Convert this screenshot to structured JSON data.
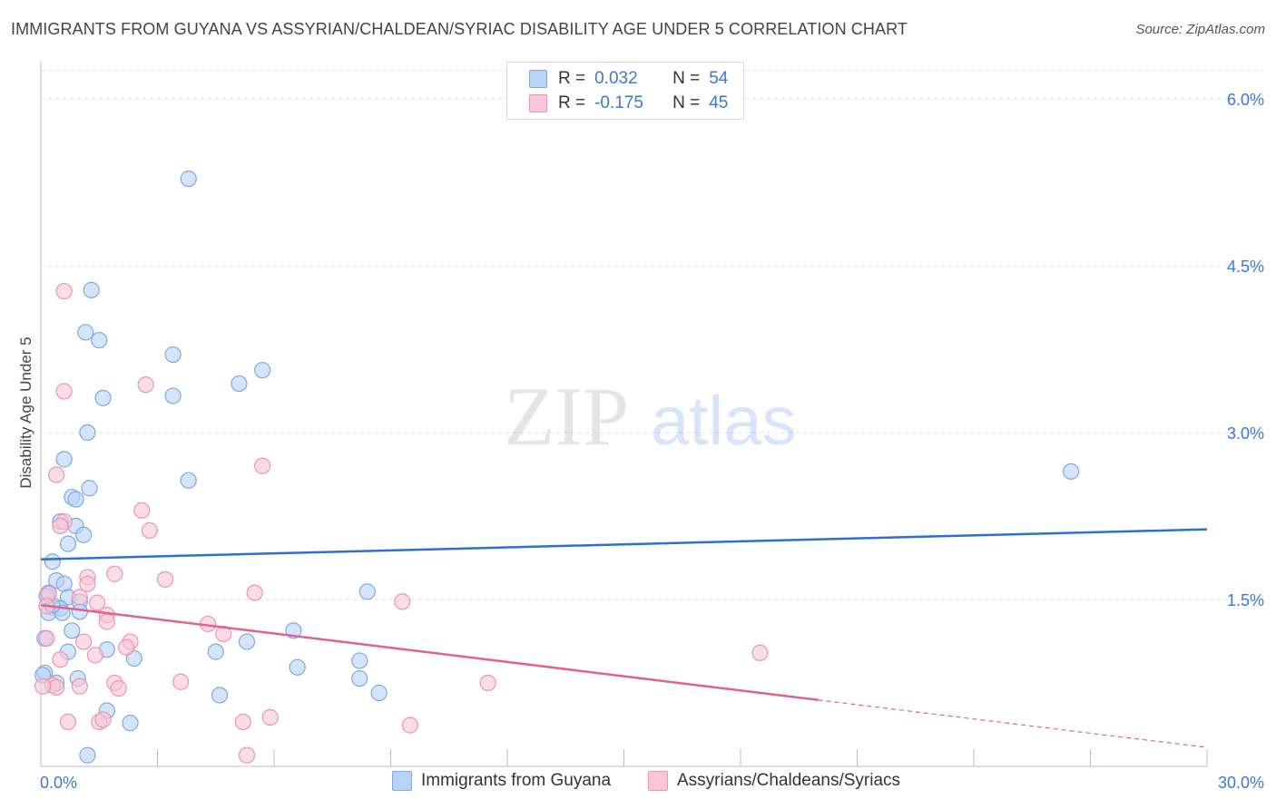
{
  "title": "IMMIGRANTS FROM GUYANA VS ASSYRIAN/CHALDEAN/SYRIAC DISABILITY AGE UNDER 5 CORRELATION CHART",
  "source": "Source: ZipAtlas.com",
  "watermark": {
    "zip": "ZIP",
    "atlas": "atlas"
  },
  "legend": {
    "r_label": "R =",
    "n_label": "N =",
    "rows": [
      {
        "r": "0.032",
        "n": "54"
      },
      {
        "r": "-0.175",
        "n": "45"
      }
    ]
  },
  "colors": {
    "blue_fill": "#b9d3f5",
    "blue_stroke": "#7ea8e6",
    "blue_line": "#2f6fcf",
    "pink_fill": "#f8c6d6",
    "pink_stroke": "#ee93b1",
    "pink_line": "#e2628f",
    "tick_text": "#3a78d8",
    "grid": "#dedede"
  },
  "chart_data": {
    "type": "scatter",
    "title": "IMMIGRANTS FROM GUYANA VS ASSYRIAN/CHALDEAN/SYRIAC DISABILITY AGE UNDER 5 CORRELATION CHART",
    "xlabel": "",
    "ylabel": "Disability Age Under 5",
    "xlim": [
      0,
      30
    ],
    "ylim": [
      0,
      6.3
    ],
    "x_tick_labels": [
      "0.0%",
      "30.0%"
    ],
    "y_ticks": [
      1.5,
      3.0,
      4.5,
      6.0
    ],
    "y_tick_labels": [
      "1.5%",
      "3.0%",
      "4.5%",
      "6.0%"
    ],
    "grid": true,
    "legend_position": "top-center",
    "series": [
      {
        "name": "Immigrants from Guyana",
        "color": "blue",
        "r": 0.032,
        "n": 54,
        "trend": {
          "x": [
            0,
            30
          ],
          "y": [
            1.86,
            2.13
          ],
          "dashed_from": null
        },
        "points": [
          [
            3.8,
            5.28
          ],
          [
            1.3,
            4.28
          ],
          [
            1.15,
            3.9
          ],
          [
            1.5,
            3.83
          ],
          [
            3.4,
            3.7
          ],
          [
            5.7,
            3.56
          ],
          [
            5.1,
            3.44
          ],
          [
            1.6,
            3.31
          ],
          [
            3.4,
            3.33
          ],
          [
            1.2,
            3.0
          ],
          [
            0.6,
            2.76
          ],
          [
            1.25,
            2.5
          ],
          [
            3.8,
            2.57
          ],
          [
            0.8,
            2.42
          ],
          [
            0.9,
            2.4
          ],
          [
            0.5,
            2.2
          ],
          [
            0.9,
            2.16
          ],
          [
            1.1,
            2.08
          ],
          [
            0.7,
            2.0
          ],
          [
            0.3,
            1.84
          ],
          [
            0.4,
            1.67
          ],
          [
            0.6,
            1.64
          ],
          [
            8.4,
            1.57
          ],
          [
            0.2,
            1.56
          ],
          [
            0.7,
            1.52
          ],
          [
            1.0,
            1.48
          ],
          [
            0.3,
            1.43
          ],
          [
            0.5,
            1.42
          ],
          [
            0.2,
            1.38
          ],
          [
            1.0,
            1.39
          ],
          [
            0.55,
            1.38
          ],
          [
            6.5,
            1.22
          ],
          [
            0.8,
            1.22
          ],
          [
            0.1,
            1.15
          ],
          [
            5.3,
            1.12
          ],
          [
            1.7,
            1.05
          ],
          [
            4.5,
            1.03
          ],
          [
            0.7,
            1.03
          ],
          [
            2.4,
            0.97
          ],
          [
            8.2,
            0.95
          ],
          [
            6.6,
            0.89
          ],
          [
            0.1,
            0.84
          ],
          [
            0.95,
            0.79
          ],
          [
            8.2,
            0.79
          ],
          [
            0.4,
            0.75
          ],
          [
            4.6,
            0.64
          ],
          [
            8.7,
            0.66
          ],
          [
            1.7,
            0.5
          ],
          [
            2.3,
            0.39
          ],
          [
            1.2,
            0.1
          ],
          [
            0.05,
            0.82
          ],
          [
            26.5,
            2.65
          ],
          [
            0.3,
            1.45
          ],
          [
            0.15,
            1.53
          ]
        ]
      },
      {
        "name": "Assyrians/Chaldeans/Syriacs",
        "color": "pink",
        "r": -0.175,
        "n": 45,
        "trend": {
          "x": [
            0,
            30
          ],
          "y": [
            1.45,
            0.17
          ],
          "dashed_from": 20
        },
        "points": [
          [
            0.6,
            4.27
          ],
          [
            0.6,
            3.37
          ],
          [
            2.7,
            3.43
          ],
          [
            5.7,
            2.7
          ],
          [
            0.4,
            2.62
          ],
          [
            2.6,
            2.3
          ],
          [
            0.6,
            2.2
          ],
          [
            0.5,
            2.16
          ],
          [
            2.8,
            2.12
          ],
          [
            1.9,
            1.73
          ],
          [
            1.2,
            1.7
          ],
          [
            3.2,
            1.68
          ],
          [
            1.2,
            1.64
          ],
          [
            5.5,
            1.56
          ],
          [
            0.2,
            1.55
          ],
          [
            1.0,
            1.52
          ],
          [
            9.3,
            1.48
          ],
          [
            1.45,
            1.47
          ],
          [
            0.15,
            1.44
          ],
          [
            1.7,
            1.36
          ],
          [
            1.7,
            1.3
          ],
          [
            4.3,
            1.28
          ],
          [
            4.7,
            1.19
          ],
          [
            1.1,
            1.12
          ],
          [
            2.3,
            1.12
          ],
          [
            2.2,
            1.07
          ],
          [
            0.15,
            1.15
          ],
          [
            1.4,
            1.0
          ],
          [
            18.5,
            1.02
          ],
          [
            0.5,
            0.96
          ],
          [
            3.6,
            0.76
          ],
          [
            1.9,
            0.75
          ],
          [
            11.5,
            0.75
          ],
          [
            0.3,
            0.73
          ],
          [
            0.4,
            0.71
          ],
          [
            1.0,
            0.72
          ],
          [
            2.0,
            0.7
          ],
          [
            0.05,
            0.72
          ],
          [
            5.9,
            0.44
          ],
          [
            0.7,
            0.4
          ],
          [
            1.5,
            0.4
          ],
          [
            1.6,
            0.42
          ],
          [
            5.2,
            0.4
          ],
          [
            9.5,
            0.37
          ],
          [
            5.3,
            0.1
          ]
        ]
      }
    ]
  }
}
